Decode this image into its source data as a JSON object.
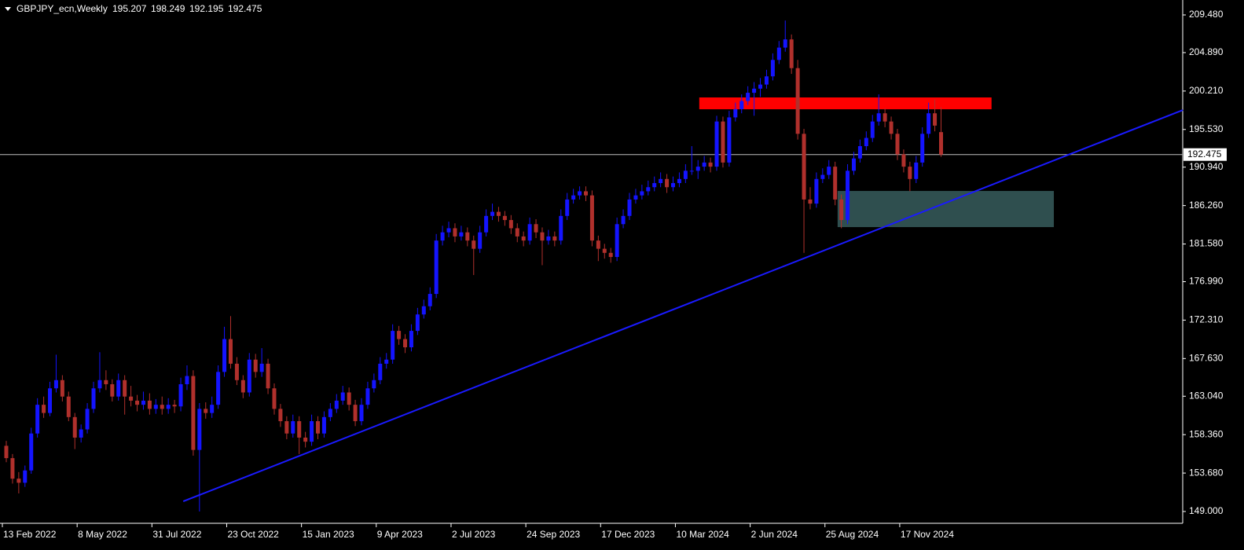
{
  "chart_data": {
    "type": "candlestick",
    "title": "GBPJPY_ecn,Weekly",
    "categories": [
      "13 Feb 2022",
      null,
      null,
      null,
      null,
      null,
      null,
      null,
      null,
      null,
      null,
      null,
      "8 May 2022",
      null,
      null,
      null,
      null,
      null,
      null,
      null,
      null,
      null,
      null,
      null,
      "31 Jul 2022",
      null,
      null,
      null,
      null,
      null,
      null,
      null,
      null,
      null,
      null,
      null,
      "23 Oct 2022",
      null,
      null,
      null,
      null,
      null,
      null,
      null,
      null,
      null,
      null,
      null,
      "15 Jan 2023",
      null,
      null,
      null,
      null,
      null,
      null,
      null,
      null,
      null,
      null,
      null,
      "9 Apr 2023",
      null,
      null,
      null,
      null,
      null,
      null,
      null,
      null,
      null,
      null,
      null,
      "2 Jul 2023",
      null,
      null,
      null,
      null,
      null,
      null,
      null,
      null,
      null,
      null,
      null,
      "24 Sep 2023",
      null,
      null,
      null,
      null,
      null,
      null,
      null,
      null,
      null,
      null,
      null,
      "17 Dec 2023",
      null,
      null,
      null,
      null,
      null,
      null,
      null,
      null,
      null,
      null,
      null,
      "10 Mar 2024",
      null,
      null,
      null,
      null,
      null,
      null,
      null,
      null,
      null,
      null,
      null,
      "2 Jun 2024",
      null,
      null,
      null,
      null,
      null,
      null,
      null,
      null,
      null,
      null,
      null,
      "25 Aug 2024",
      null,
      null,
      null,
      null,
      null,
      null,
      null,
      null,
      null,
      null,
      null,
      "17 Nov 2024",
      null,
      null,
      null,
      null,
      null,
      null
    ],
    "ohlc": [
      [
        157.0,
        157.6,
        155.0,
        155.5
      ],
      [
        155.5,
        156.0,
        152.4,
        153.0
      ],
      [
        153.0,
        153.8,
        151.2,
        152.5
      ],
      [
        152.5,
        154.6,
        152.0,
        154.0
      ],
      [
        154.0,
        159.2,
        153.6,
        158.5
      ],
      [
        158.5,
        162.8,
        158.0,
        162.0
      ],
      [
        162.0,
        163.0,
        160.4,
        161.0
      ],
      [
        161.0,
        164.8,
        160.6,
        164.0
      ],
      [
        164.0,
        168.1,
        163.5,
        165.0
      ],
      [
        165.0,
        165.6,
        162.4,
        163.0
      ],
      [
        163.0,
        163.6,
        160.0,
        160.5
      ],
      [
        160.5,
        161.0,
        156.6,
        158.0
      ],
      [
        158.0,
        159.6,
        157.4,
        159.0
      ],
      [
        159.0,
        162.2,
        158.5,
        161.5
      ],
      [
        161.5,
        164.8,
        161.0,
        164.0
      ],
      [
        164.0,
        168.4,
        163.5,
        165.0
      ],
      [
        165.0,
        166.2,
        163.8,
        164.5
      ],
      [
        164.5,
        165.1,
        162.4,
        163.0
      ],
      [
        163.0,
        165.8,
        162.5,
        165.0
      ],
      [
        165.0,
        165.6,
        160.8,
        163.0
      ],
      [
        163.0,
        164.3,
        161.8,
        162.5
      ],
      [
        162.5,
        163.2,
        161.2,
        162.0
      ],
      [
        162.0,
        163.6,
        161.4,
        162.5
      ],
      [
        162.5,
        163.4,
        160.8,
        161.5
      ],
      [
        161.5,
        162.7,
        160.9,
        162.0
      ],
      [
        162.0,
        163.0,
        160.8,
        161.5
      ],
      [
        161.5,
        162.8,
        160.9,
        162.0
      ],
      [
        162.0,
        162.6,
        161.0,
        161.8
      ],
      [
        161.8,
        165.3,
        161.2,
        164.5
      ],
      [
        164.5,
        166.8,
        163.8,
        165.5
      ],
      [
        165.5,
        166.2,
        155.8,
        156.5
      ],
      [
        156.5,
        162.2,
        149.0,
        161.5
      ],
      [
        161.5,
        162.3,
        160.3,
        161.0
      ],
      [
        161.0,
        163.0,
        160.4,
        162.0
      ],
      [
        162.0,
        166.8,
        161.5,
        166.0
      ],
      [
        166.0,
        171.5,
        165.4,
        170.0
      ],
      [
        170.0,
        172.8,
        166.4,
        167.0
      ],
      [
        167.0,
        167.8,
        164.4,
        165.0
      ],
      [
        165.0,
        165.6,
        162.8,
        163.5
      ],
      [
        163.5,
        168.3,
        163.0,
        167.5
      ],
      [
        167.5,
        168.2,
        165.3,
        166.0
      ],
      [
        166.0,
        168.9,
        165.4,
        167.0
      ],
      [
        167.0,
        167.6,
        163.3,
        164.0
      ],
      [
        164.0,
        164.6,
        160.8,
        161.5
      ],
      [
        161.5,
        162.1,
        159.3,
        160.0
      ],
      [
        160.0,
        160.6,
        157.8,
        158.5
      ],
      [
        158.5,
        160.8,
        158.0,
        160.0
      ],
      [
        160.0,
        160.6,
        156.0,
        158.0
      ],
      [
        158.0,
        158.7,
        156.8,
        157.5
      ],
      [
        157.5,
        160.8,
        157.0,
        160.0
      ],
      [
        160.0,
        160.6,
        157.8,
        158.5
      ],
      [
        158.5,
        161.2,
        158.0,
        160.5
      ],
      [
        160.5,
        162.2,
        160.0,
        161.5
      ],
      [
        161.5,
        163.3,
        161.0,
        162.5
      ],
      [
        162.5,
        164.3,
        162.0,
        163.5
      ],
      [
        163.5,
        164.1,
        161.3,
        162.0
      ],
      [
        162.0,
        162.6,
        159.4,
        160.0
      ],
      [
        160.0,
        162.8,
        159.5,
        162.0
      ],
      [
        162.0,
        164.8,
        161.5,
        164.0
      ],
      [
        164.0,
        165.8,
        163.5,
        165.0
      ],
      [
        165.0,
        167.8,
        164.5,
        167.0
      ],
      [
        167.0,
        168.3,
        166.4,
        167.5
      ],
      [
        167.5,
        171.8,
        167.0,
        171.0
      ],
      [
        171.0,
        171.6,
        169.3,
        170.0
      ],
      [
        170.0,
        170.6,
        168.3,
        169.0
      ],
      [
        169.0,
        171.8,
        168.5,
        171.0
      ],
      [
        171.0,
        173.8,
        170.5,
        173.0
      ],
      [
        173.0,
        174.8,
        172.5,
        174.0
      ],
      [
        174.0,
        176.3,
        173.5,
        175.5
      ],
      [
        175.5,
        182.8,
        175.0,
        182.0
      ],
      [
        182.0,
        183.8,
        181.4,
        183.0
      ],
      [
        183.0,
        184.3,
        182.4,
        183.5
      ],
      [
        183.5,
        184.1,
        181.8,
        182.5
      ],
      [
        182.5,
        183.8,
        182.0,
        183.0
      ],
      [
        183.0,
        183.6,
        181.3,
        182.0
      ],
      [
        182.0,
        182.6,
        177.8,
        181.0
      ],
      [
        181.0,
        183.8,
        180.5,
        183.0
      ],
      [
        183.0,
        185.8,
        182.5,
        185.0
      ],
      [
        185.0,
        186.5,
        184.5,
        185.5
      ],
      [
        185.5,
        186.1,
        184.3,
        185.0
      ],
      [
        185.0,
        185.6,
        183.8,
        184.5
      ],
      [
        184.5,
        185.1,
        182.8,
        183.5
      ],
      [
        183.5,
        184.1,
        181.8,
        182.5
      ],
      [
        182.5,
        183.1,
        181.3,
        182.0
      ],
      [
        182.0,
        184.8,
        181.5,
        184.0
      ],
      [
        184.0,
        184.6,
        182.3,
        183.0
      ],
      [
        183.0,
        183.6,
        179.0,
        182.0
      ],
      [
        182.0,
        183.3,
        181.5,
        182.5
      ],
      [
        182.5,
        183.1,
        181.3,
        182.0
      ],
      [
        182.0,
        185.8,
        181.5,
        185.0
      ],
      [
        185.0,
        187.8,
        184.5,
        187.0
      ],
      [
        187.0,
        188.3,
        186.5,
        187.5
      ],
      [
        187.5,
        188.6,
        187.0,
        188.0
      ],
      [
        188.0,
        188.6,
        186.8,
        187.5
      ],
      [
        187.5,
        188.1,
        181.3,
        182.0
      ],
      [
        182.0,
        182.6,
        179.5,
        181.0
      ],
      [
        181.0,
        181.6,
        179.8,
        180.5
      ],
      [
        180.5,
        181.1,
        179.3,
        180.0
      ],
      [
        180.0,
        184.8,
        179.5,
        184.0
      ],
      [
        184.0,
        185.8,
        183.5,
        185.0
      ],
      [
        185.0,
        187.8,
        184.5,
        187.0
      ],
      [
        187.0,
        188.3,
        186.5,
        187.5
      ],
      [
        187.5,
        188.8,
        187.0,
        188.0
      ],
      [
        188.0,
        189.3,
        187.5,
        188.5
      ],
      [
        188.5,
        189.8,
        188.0,
        189.0
      ],
      [
        189.0,
        190.3,
        188.5,
        189.5
      ],
      [
        189.5,
        190.1,
        187.8,
        188.5
      ],
      [
        188.5,
        189.8,
        188.0,
        189.0
      ],
      [
        189.0,
        190.3,
        188.5,
        189.5
      ],
      [
        189.5,
        191.3,
        189.0,
        190.5
      ],
      [
        190.5,
        193.5,
        190.0,
        190.5
      ],
      [
        190.5,
        191.8,
        189.5,
        191.0
      ],
      [
        191.0,
        192.3,
        190.5,
        191.5
      ],
      [
        191.5,
        192.1,
        190.3,
        191.0
      ],
      [
        191.0,
        197.2,
        190.5,
        196.5
      ],
      [
        196.5,
        197.1,
        190.9,
        191.5
      ],
      [
        191.5,
        197.8,
        191.0,
        197.0
      ],
      [
        197.0,
        198.8,
        196.5,
        198.0
      ],
      [
        198.0,
        199.8,
        197.5,
        199.0
      ],
      [
        199.0,
        200.8,
        198.5,
        200.0
      ],
      [
        200.0,
        201.3,
        197.2,
        200.5
      ],
      [
        200.5,
        201.8,
        199.5,
        201.0
      ],
      [
        201.0,
        202.8,
        200.5,
        202.0
      ],
      [
        202.0,
        204.8,
        201.5,
        204.0
      ],
      [
        204.0,
        206.3,
        203.5,
        205.5
      ],
      [
        205.5,
        208.8,
        205.0,
        206.5
      ],
      [
        206.5,
        207.1,
        202.3,
        203.0
      ],
      [
        203.0,
        204.0,
        194.3,
        195.0
      ],
      [
        195.0,
        195.6,
        180.5,
        187.0
      ],
      [
        187.0,
        188.5,
        185.8,
        186.5
      ],
      [
        186.5,
        190.3,
        186.0,
        189.5
      ],
      [
        189.5,
        190.8,
        189.0,
        190.0
      ],
      [
        190.0,
        191.8,
        189.5,
        191.0
      ],
      [
        191.0,
        191.6,
        186.3,
        187.0
      ],
      [
        187.0,
        187.6,
        183.5,
        184.5
      ],
      [
        184.5,
        191.3,
        184.0,
        190.5
      ],
      [
        190.5,
        192.8,
        190.0,
        192.0
      ],
      [
        192.0,
        194.3,
        191.5,
        193.5
      ],
      [
        193.5,
        195.3,
        193.0,
        194.5
      ],
      [
        194.5,
        197.3,
        194.0,
        196.5
      ],
      [
        196.5,
        199.8,
        196.0,
        197.5
      ],
      [
        197.5,
        198.1,
        195.8,
        196.5
      ],
      [
        196.5,
        197.1,
        194.3,
        195.0
      ],
      [
        195.0,
        195.6,
        191.8,
        192.5
      ],
      [
        192.5,
        193.1,
        190.3,
        191.0
      ],
      [
        191.0,
        191.6,
        188.0,
        189.5
      ],
      [
        189.5,
        192.3,
        189.0,
        191.5
      ],
      [
        191.5,
        195.8,
        191.0,
        195.0
      ],
      [
        195.0,
        198.8,
        194.5,
        197.5
      ],
      [
        197.5,
        199.2,
        195.3,
        196.0
      ],
      [
        195.207,
        198.249,
        192.195,
        192.475
      ]
    ],
    "colors": {
      "up": "#1414ff",
      "down": "#b0302c"
    },
    "ylim": [
      147.66,
      210.82
    ],
    "yticks": [
      {
        "value": 149.0,
        "label": "149.000"
      },
      {
        "value": 153.68,
        "label": "153.680"
      },
      {
        "value": 158.36,
        "label": "158.360"
      },
      {
        "value": 163.04,
        "label": "163.040"
      },
      {
        "value": 167.63,
        "label": "167.630"
      },
      {
        "value": 172.31,
        "label": "172.310"
      },
      {
        "value": 176.99,
        "label": "176.990"
      },
      {
        "value": 181.58,
        "label": "181.580"
      },
      {
        "value": 186.26,
        "label": "186.260"
      },
      {
        "value": 190.94,
        "label": "190.940"
      },
      {
        "value": 195.53,
        "label": "195.530"
      },
      {
        "value": 200.21,
        "label": "200.210"
      },
      {
        "value": 204.89,
        "label": "204.890"
      },
      {
        "value": 209.48,
        "label": "209.480"
      }
    ],
    "zones": [
      {
        "color": "#ff0000",
        "x": [
          111.2,
          158.1
        ],
        "y": [
          197.99,
          199.43
        ]
      },
      {
        "color": "#2f4f4f",
        "x": [
          133.4,
          168.1
        ],
        "y": [
          183.64,
          188.04
        ]
      }
    ],
    "trendline": {
      "color": "#1a1aff",
      "x": [
        28.4,
        188.8
      ],
      "y": [
        150.24,
        197.9
      ]
    },
    "price_line_color": "#c0c0c0"
  }
}
